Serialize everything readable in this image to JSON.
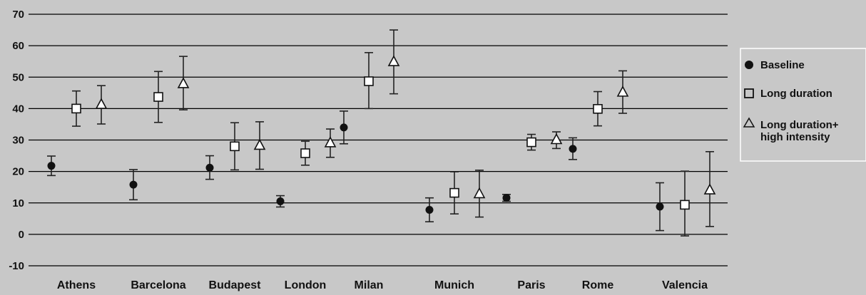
{
  "chart_data": {
    "type": "scatter",
    "title": "",
    "xlabel": "",
    "ylabel": "",
    "ylim": [
      -10,
      70
    ],
    "yticks": [
      -10,
      0,
      10,
      20,
      30,
      40,
      50,
      60,
      70
    ],
    "grid": true,
    "legend_position": "right",
    "categories": [
      "Athens",
      "Barcelona",
      "Budapest",
      "London",
      "Milan",
      "Munich",
      "Paris",
      "Rome",
      "Valencia"
    ],
    "series": [
      {
        "name": "Baseline",
        "marker": "filled-circle",
        "values": [
          21.8,
          15.8,
          21.2,
          10.5,
          34.0,
          7.8,
          11.6,
          27.2,
          8.8
        ],
        "error_low": [
          18.7,
          11.0,
          17.5,
          8.7,
          28.8,
          4.0,
          10.5,
          23.8,
          1.2
        ],
        "error_high": [
          24.9,
          20.6,
          25.0,
          12.3,
          39.2,
          11.6,
          12.7,
          30.7,
          16.4
        ]
      },
      {
        "name": "Long duration",
        "marker": "open-square",
        "values": [
          40.0,
          43.7,
          28.0,
          25.8,
          48.7,
          13.2,
          29.3,
          39.9,
          9.4
        ],
        "error_low": [
          34.4,
          35.6,
          20.5,
          22.0,
          40.0,
          6.5,
          26.8,
          34.5,
          -0.5
        ],
        "error_high": [
          45.6,
          51.8,
          35.5,
          29.6,
          57.8,
          19.9,
          31.8,
          45.4,
          20.1
        ]
      },
      {
        "name": "Long duration+ high intensity",
        "marker": "open-triangle",
        "values": [
          41.2,
          47.8,
          28.2,
          29.0,
          54.8,
          12.8,
          30.0,
          45.1,
          14.0
        ],
        "error_low": [
          35.1,
          39.6,
          20.7,
          24.5,
          44.7,
          5.5,
          27.3,
          38.5,
          2.5
        ],
        "error_high": [
          47.3,
          56.6,
          35.8,
          33.5,
          65.0,
          20.4,
          32.6,
          52.0,
          26.3
        ]
      }
    ],
    "legend": [
      {
        "symbol": "●",
        "label": "Baseline"
      },
      {
        "symbol": "□",
        "label": "Long duration"
      },
      {
        "symbol": "△",
        "label": "Long duration+",
        "label_line2": "high intensity"
      }
    ],
    "colors": {
      "background": "#c8c8c8",
      "gridline": "#000000",
      "marker_fill_filled": "#111111",
      "marker_fill_open": "#ffffff",
      "error_bar": "#222222",
      "legend_background": "#c8c8c8",
      "legend_border": "#ffffff"
    }
  }
}
